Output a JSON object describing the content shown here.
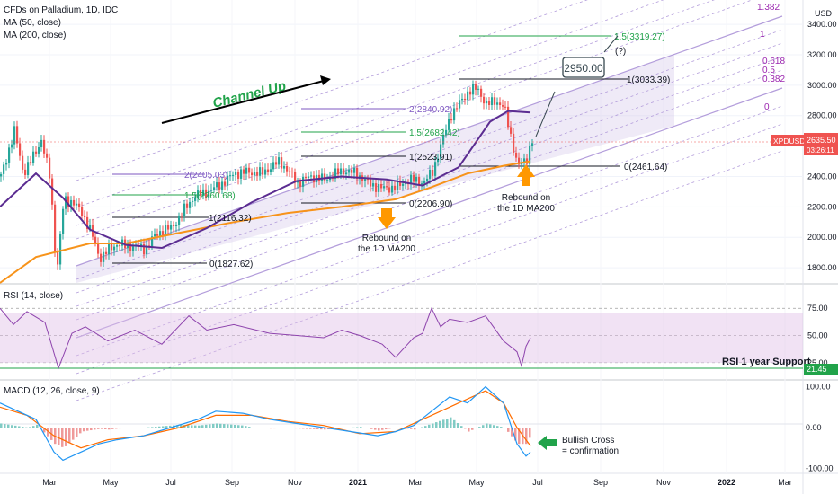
{
  "header": {
    "symbol_line": "CFDs on Palladium, 1D, IDC",
    "ma50": "MA (50, close)",
    "ma200": "MA (200, close)",
    "currency": "USD",
    "price_tag": "2635.50",
    "price_tag_sub": "03:26:11",
    "ticker": "XPDUSD"
  },
  "annotations": {
    "channel": "Channel Up",
    "target_box": "2950.00",
    "question": "(?)",
    "rebound1_l1": "Rebound on",
    "rebound1_l2": "the 1D MA200",
    "rebound2_l1": "Rebound on",
    "rebound2_l2": "the 1D MA200",
    "rsi_support": "RSI 1 year Support",
    "bull_l1": "Bullish Cross",
    "bull_l2": "= confirmation"
  },
  "fib_labels": {
    "a0": "0(1827.62)",
    "a1": "1(2116.32)",
    "a15": "1.5(2260.68)",
    "a2": "2(2405.03)",
    "b0": "0(2206.90)",
    "b1": "1(2523.91)",
    "b15": "1.5(2682.42)",
    "b2": "2(2840.92)",
    "c0": "0(2461.64)",
    "c1": "1(3033.39)",
    "c15": "1.5(3319.27)"
  },
  "channel_levels": [
    "1.382",
    "1",
    "0.618",
    "0.5",
    "0.382",
    "0"
  ],
  "panels": {
    "rsi_title": "RSI (14, close)",
    "macd_title": "MACD (12, 26, close, 9)",
    "rsi_value": "21.45"
  },
  "colors": {
    "ma50": "#5b2c91",
    "ma200": "#f7931a",
    "up": "#26a69a",
    "down": "#ef5350",
    "rsi": "#8e44ad",
    "macd": "#2196f3",
    "signal": "#ff6d00",
    "channel": "#b39ddb",
    "green_annot": "#21a34a",
    "arrow_orange": "#ff9800",
    "price_tag": "#ef5350"
  },
  "chart_data": {
    "type": "line",
    "title": "CFDs on Palladium, 1D, IDC",
    "x_labels": [
      "Mar",
      "May",
      "Jul",
      "Sep",
      "Nov",
      "2021",
      "Mar",
      "May",
      "Jul",
      "Sep",
      "Nov",
      "2022",
      "Mar"
    ],
    "price_axis": {
      "ticks": [
        1800,
        2000,
        2200,
        2400,
        2600,
        2800,
        3000,
        3200,
        3400
      ],
      "ylim": [
        1700,
        3560
      ]
    },
    "rsi_axis": {
      "ticks": [
        "25.00",
        "50.00",
        "75.00"
      ],
      "ylim": [
        10,
        95
      ]
    },
    "macd_axis": {
      "ticks": [
        "-100.00",
        "0.00",
        "100.00"
      ],
      "ylim": [
        -110,
        110
      ]
    },
    "series": [
      {
        "name": "MA (50, close)",
        "x": [
          0,
          40,
          70,
          100,
          140,
          180,
          230,
          280,
          330,
          380,
          430,
          470,
          510,
          545,
          565,
          590
        ],
        "values": [
          2200,
          2420,
          2260,
          2050,
          1950,
          1930,
          2060,
          2230,
          2370,
          2400,
          2380,
          2340,
          2460,
          2760,
          2830,
          2820
        ]
      },
      {
        "name": "MA (200, close)",
        "x": [
          0,
          40,
          100,
          140,
          200,
          260,
          320,
          380,
          440,
          480,
          520,
          560,
          590
        ],
        "values": [
          1700,
          1870,
          1960,
          1960,
          2030,
          2100,
          2160,
          2200,
          2250,
          2330,
          2420,
          2470,
          2500
        ]
      },
      {
        "name": "Price",
        "x": [
          0,
          15,
          25,
          35,
          45,
          55,
          62,
          70,
          80,
          90,
          100,
          110,
          120,
          130,
          140,
          150,
          160,
          170,
          180,
          190,
          200,
          215,
          230,
          245,
          260,
          275,
          290,
          310,
          330,
          345,
          360,
          380,
          395,
          410,
          425,
          440,
          455,
          470,
          480,
          490,
          500,
          510,
          520,
          530,
          540,
          550,
          560,
          575,
          585,
          590
        ],
        "values": [
          2400,
          2700,
          2420,
          2520,
          2640,
          2380,
          1760,
          2250,
          2230,
          2160,
          2040,
          1860,
          1920,
          1960,
          1940,
          1940,
          1920,
          2000,
          2050,
          2060,
          2150,
          2270,
          2300,
          2350,
          2420,
          2430,
          2420,
          2500,
          2360,
          2400,
          2380,
          2440,
          2420,
          2350,
          2320,
          2330,
          2380,
          2360,
          2430,
          2620,
          2800,
          2880,
          2960,
          2980,
          2870,
          2900,
          2850,
          2460,
          2520,
          2635
        ]
      }
    ],
    "rsi": {
      "x": [
        0,
        15,
        30,
        50,
        65,
        80,
        95,
        120,
        150,
        180,
        210,
        230,
        260,
        300,
        330,
        360,
        380,
        400,
        425,
        440,
        460,
        470,
        480,
        490,
        500,
        520,
        540,
        560,
        575,
        580,
        585,
        590
      ],
      "values": [
        75,
        60,
        72,
        62,
        20,
        52,
        58,
        45,
        55,
        42,
        68,
        55,
        60,
        52,
        50,
        48,
        55,
        50,
        42,
        30,
        48,
        52,
        75,
        58,
        65,
        62,
        68,
        45,
        35,
        22,
        40,
        48
      ]
    },
    "macd": {
      "x": [
        0,
        20,
        40,
        60,
        70,
        90,
        110,
        130,
        160,
        190,
        220,
        240,
        270,
        300,
        330,
        360,
        390,
        420,
        440,
        460,
        480,
        500,
        520,
        540,
        560,
        575,
        585,
        590
      ],
      "values": [
        60,
        40,
        20,
        -60,
        -80,
        -60,
        -40,
        -30,
        -20,
        0,
        20,
        40,
        35,
        20,
        10,
        0,
        -10,
        -20,
        -10,
        5,
        40,
        75,
        60,
        100,
        60,
        -40,
        -70,
        -60
      ]
    },
    "macd_signal": {
      "x": [
        0,
        30,
        60,
        90,
        120,
        160,
        200,
        240,
        280,
        320,
        360,
        400,
        440,
        480,
        510,
        540,
        560,
        575,
        590
      ],
      "values": [
        50,
        30,
        -20,
        -50,
        -30,
        -20,
        0,
        30,
        30,
        15,
        5,
        -15,
        -10,
        30,
        60,
        90,
        60,
        0,
        -45
      ]
    },
    "fib_levels": [
      1827.62,
      2116.32,
      2260.68,
      2405.03,
      2206.9,
      2523.91,
      2682.42,
      2840.92,
      2461.64,
      3033.39,
      3319.27
    ],
    "target": 2950.0,
    "rsi_support": 21.45,
    "current_price": 2635.5
  }
}
